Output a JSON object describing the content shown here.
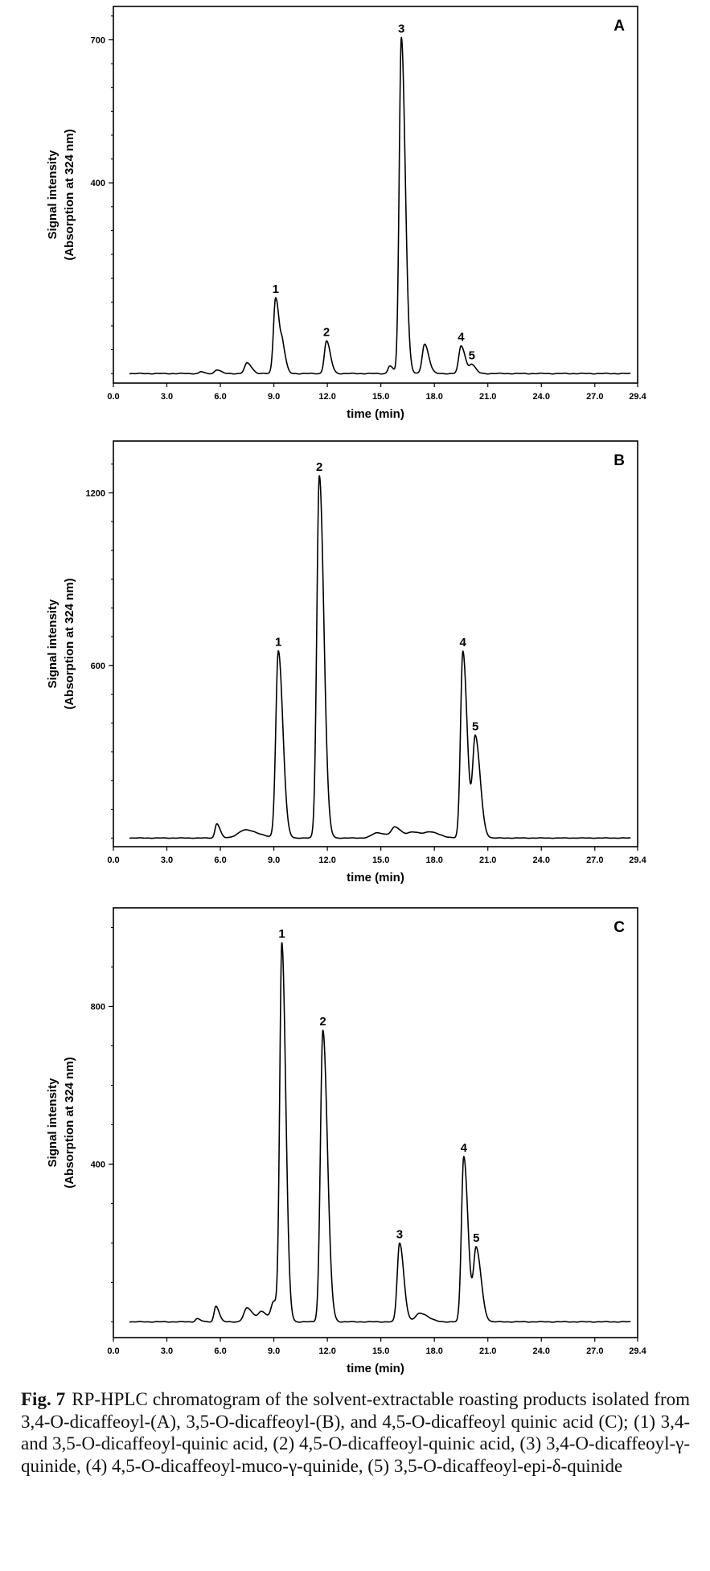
{
  "chart_data": [
    {
      "type": "line",
      "panel": "A",
      "xlabel": "time (min)",
      "ylabel_lines": [
        "Signal intensity",
        "(Absorption at 324 nm)"
      ],
      "xlim": [
        0,
        29.4
      ],
      "ylim": [
        -20,
        770
      ],
      "xticks": [
        "0.0",
        "3.0",
        "6.0",
        "9.0",
        "12.0",
        "15.0",
        "18.0",
        "21.0",
        "24.0",
        "27.0",
        "29.4"
      ],
      "yticks": [
        "400",
        "700"
      ],
      "baseline": 0,
      "peaks": [
        {
          "label": "",
          "x": 4.9,
          "height": 4,
          "width": 0.08
        },
        {
          "label": "",
          "x": 5.8,
          "height": 8,
          "width": 0.12
        },
        {
          "label": "",
          "x": 7.5,
          "height": 22,
          "width": 0.14
        },
        {
          "label": "1",
          "x": 9.1,
          "height": 160,
          "width": 0.12
        },
        {
          "label": "",
          "x": 9.5,
          "height": 42,
          "width": 0.1
        },
        {
          "label": "2",
          "x": 11.95,
          "height": 68,
          "width": 0.12
        },
        {
          "label": "",
          "x": 15.5,
          "height": 16,
          "width": 0.1
        },
        {
          "label": "3",
          "x": 16.15,
          "height": 705,
          "width": 0.12
        },
        {
          "label": "",
          "x": 17.45,
          "height": 62,
          "width": 0.13
        },
        {
          "label": "4",
          "x": 19.5,
          "height": 58,
          "width": 0.13
        },
        {
          "label": "5",
          "x": 20.1,
          "height": 18,
          "width": 0.12
        }
      ]
    },
    {
      "type": "line",
      "panel": "B",
      "xlabel": "time (min)",
      "ylabel_lines": [
        "Signal intensity",
        "(Absorption at 324 nm)"
      ],
      "xlim": [
        0,
        29.4
      ],
      "ylim": [
        -30,
        1380
      ],
      "xticks": [
        "0.0",
        "3.0",
        "6.0",
        "9.0",
        "12.0",
        "15.0",
        "18.0",
        "21.0",
        "24.0",
        "27.0",
        "29.4"
      ],
      "yticks": [
        "600",
        "1200"
      ],
      "baseline": 0,
      "peaks": [
        {
          "label": "",
          "x": 5.8,
          "height": 50,
          "width": 0.1
        },
        {
          "label": "",
          "x": 7.4,
          "height": 28,
          "width": 0.4
        },
        {
          "label": "1",
          "x": 9.25,
          "height": 650,
          "width": 0.14
        },
        {
          "label": "2",
          "x": 11.55,
          "height": 1260,
          "width": 0.14
        },
        {
          "label": "",
          "x": 14.8,
          "height": 18,
          "width": 0.3
        },
        {
          "label": "",
          "x": 15.8,
          "height": 35,
          "width": 0.2
        },
        {
          "label": "",
          "x": 16.8,
          "height": 20,
          "width": 0.3
        },
        {
          "label": "",
          "x": 17.8,
          "height": 18,
          "width": 0.3
        },
        {
          "label": "4",
          "x": 19.6,
          "height": 650,
          "width": 0.13
        },
        {
          "label": "5",
          "x": 20.3,
          "height": 350,
          "width": 0.15
        }
      ]
    },
    {
      "type": "line",
      "panel": "C",
      "xlabel": "time (min)",
      "ylabel_lines": [
        "Signal intensity",
        "(Absorption at 324 nm)"
      ],
      "xlim": [
        0,
        29.4
      ],
      "ylim": [
        -40,
        1050
      ],
      "xticks": [
        "0.0",
        "3.0",
        "6.0",
        "9.0",
        "12.0",
        "15.0",
        "18.0",
        "21.0",
        "24.0",
        "27.0",
        "29.4"
      ],
      "yticks": [
        "400",
        "800"
      ],
      "baseline": 0,
      "peaks": [
        {
          "label": "",
          "x": 4.7,
          "height": 8,
          "width": 0.1
        },
        {
          "label": "",
          "x": 5.75,
          "height": 40,
          "width": 0.1
        },
        {
          "label": "",
          "x": 7.5,
          "height": 35,
          "width": 0.18
        },
        {
          "label": "",
          "x": 8.3,
          "height": 25,
          "width": 0.18
        },
        {
          "label": "",
          "x": 9.0,
          "height": 50,
          "width": 0.15
        },
        {
          "label": "1",
          "x": 9.45,
          "height": 950,
          "width": 0.12
        },
        {
          "label": "2",
          "x": 11.75,
          "height": 740,
          "width": 0.14
        },
        {
          "label": "3",
          "x": 16.05,
          "height": 200,
          "width": 0.13
        },
        {
          "label": "",
          "x": 17.2,
          "height": 22,
          "width": 0.25
        },
        {
          "label": "4",
          "x": 19.65,
          "height": 420,
          "width": 0.13
        },
        {
          "label": "5",
          "x": 20.35,
          "height": 185,
          "width": 0.15
        }
      ]
    }
  ],
  "caption": {
    "fig_label": "Fig. 7",
    "text": "RP-HPLC chromatogram of the solvent-extractable roasting products isolated from 3,4-O-dicaffeoyl-(A), 3,5-O-dicaffeoyl-(B), and 4,5-O-dicaffeoyl quinic acid (C); (1) 3,4- and 3,5-O-dicaffeoyl-quinic acid, (2) 4,5-O-dicaffeoyl-quinic acid, (3) 3,4-O-dicaffeoyl-γ-quinide, (4) 4,5-O-dicaffeoyl-muco-γ-quinide, (5) 3,5-O-dicaffeoyl-epi-δ-quinide"
  }
}
